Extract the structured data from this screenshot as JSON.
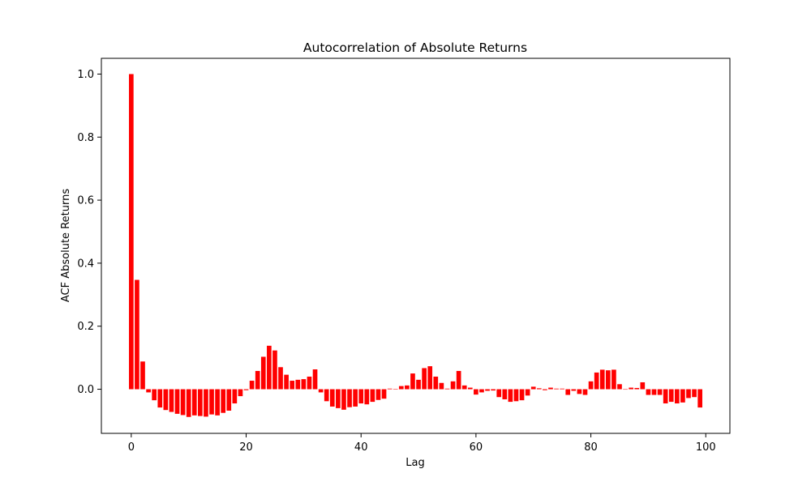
{
  "chart_data": {
    "type": "bar",
    "title": "Autocorrelation of Absolute Returns",
    "xlabel": "Lag",
    "ylabel": "ACF Absolute Returns",
    "xlim": [
      -5.2,
      104.2
    ],
    "ylim": [
      -0.14,
      1.05
    ],
    "xticks": [
      0,
      20,
      40,
      60,
      80,
      100
    ],
    "yticks": [
      0.0,
      0.2,
      0.4,
      0.6,
      0.8,
      1.0
    ],
    "ytick_labels": [
      "0.0",
      "0.2",
      "0.4",
      "0.6",
      "0.8",
      "1.0"
    ],
    "grid": false,
    "bar_color": "#ff0000",
    "x": [
      0,
      1,
      2,
      3,
      4,
      5,
      6,
      7,
      8,
      9,
      10,
      11,
      12,
      13,
      14,
      15,
      16,
      17,
      18,
      19,
      20,
      21,
      22,
      23,
      24,
      25,
      26,
      27,
      28,
      29,
      30,
      31,
      32,
      33,
      34,
      35,
      36,
      37,
      38,
      39,
      40,
      41,
      42,
      43,
      44,
      45,
      46,
      47,
      48,
      49,
      50,
      51,
      52,
      53,
      54,
      55,
      56,
      57,
      58,
      59,
      60,
      61,
      62,
      63,
      64,
      65,
      66,
      67,
      68,
      69,
      70,
      71,
      72,
      73,
      74,
      75,
      76,
      77,
      78,
      79,
      80,
      81,
      82,
      83,
      84,
      85,
      86,
      87,
      88,
      89,
      90,
      91,
      92,
      93,
      94,
      95,
      96,
      97,
      98,
      99
    ],
    "values": [
      1.0,
      0.347,
      0.088,
      -0.01,
      -0.035,
      -0.058,
      -0.066,
      -0.072,
      -0.078,
      -0.082,
      -0.088,
      -0.083,
      -0.085,
      -0.087,
      -0.08,
      -0.083,
      -0.075,
      -0.068,
      -0.045,
      -0.022,
      -0.003,
      0.027,
      0.058,
      0.103,
      0.138,
      0.123,
      0.07,
      0.046,
      0.027,
      0.03,
      0.032,
      0.04,
      0.063,
      -0.01,
      -0.038,
      -0.055,
      -0.06,
      -0.065,
      -0.057,
      -0.055,
      -0.045,
      -0.048,
      -0.04,
      -0.034,
      -0.03,
      0.002,
      0.001,
      0.01,
      0.012,
      0.05,
      0.03,
      0.067,
      0.073,
      0.04,
      0.02,
      0.002,
      0.025,
      0.058,
      0.012,
      0.005,
      -0.017,
      -0.01,
      -0.005,
      -0.004,
      -0.025,
      -0.032,
      -0.04,
      -0.038,
      -0.035,
      -0.02,
      0.008,
      0.003,
      -0.003,
      0.005,
      0.002,
      0.002,
      -0.018,
      -0.005,
      -0.015,
      -0.018,
      0.025,
      0.053,
      0.062,
      0.06,
      0.062,
      0.016,
      0.0,
      0.005,
      0.004,
      0.022,
      -0.018,
      -0.018,
      -0.018,
      -0.045,
      -0.04,
      -0.045,
      -0.042,
      -0.028,
      -0.025,
      -0.058
    ]
  }
}
